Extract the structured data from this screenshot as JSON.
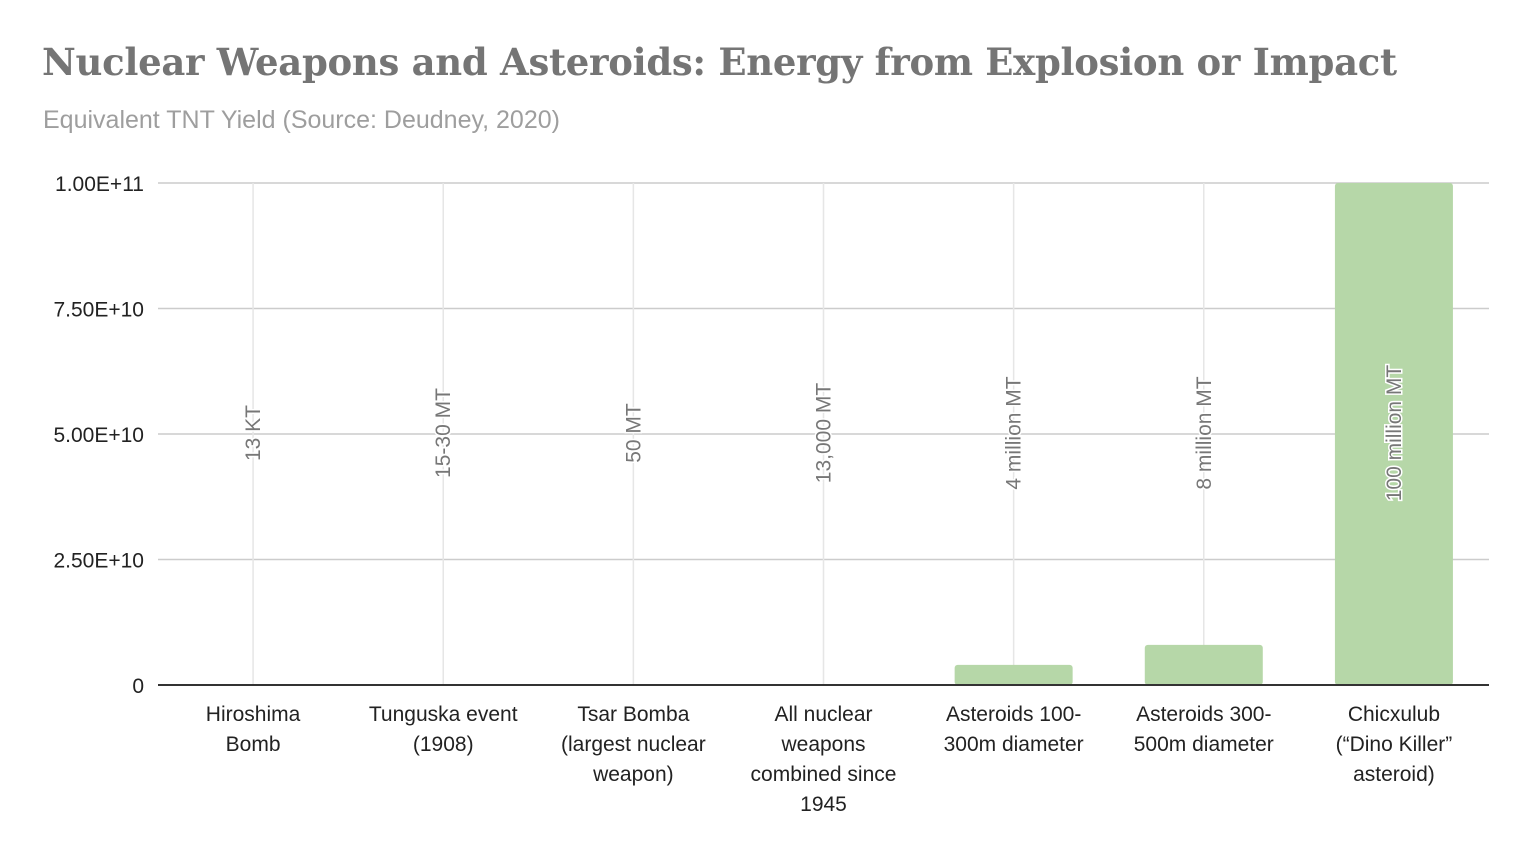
{
  "chart_data": {
    "type": "bar",
    "title": "Nuclear Weapons and Asteroids: Energy from Explosion or Impact",
    "subtitle": "Equivalent TNT Yield (Source: Deudney, 2020)",
    "xlabel": "",
    "ylabel": "",
    "categories": [
      [
        "Hiroshima",
        "Bomb"
      ],
      [
        "Tunguska event",
        "(1908)"
      ],
      [
        "Tsar Bomba",
        "(largest nuclear",
        "weapon)"
      ],
      [
        "All nuclear",
        "weapons",
        "combined since",
        "1945"
      ],
      [
        "Asteroids 100-",
        "300m diameter"
      ],
      [
        "Asteroids 300-",
        "500m diameter"
      ],
      [
        "Chicxulub",
        "(“Dino Killer”",
        "asteroid)"
      ]
    ],
    "values": [
      13,
      30000,
      50000,
      13000000,
      4000000000,
      8000000000,
      100000000000
    ],
    "data_labels": [
      "13 KT",
      "15-30 MT",
      "50 MT",
      "13,000 MT",
      "4 million MT",
      "8 million MT",
      "100 million MT"
    ],
    "ylim": [
      0,
      100000000000
    ],
    "yticks": [
      0,
      25000000000,
      50000000000,
      75000000000,
      100000000000
    ],
    "ytick_labels": [
      "0",
      "2.50E+10",
      "5.00E+10",
      "7.50E+10",
      "1.00E+11"
    ],
    "grid": true,
    "legend": "none",
    "colors": {
      "bar": "#b6d7a8",
      "grid": "#cccccc",
      "axis": "#333333",
      "data_label": "#777777",
      "tick_text": "#222222"
    }
  }
}
